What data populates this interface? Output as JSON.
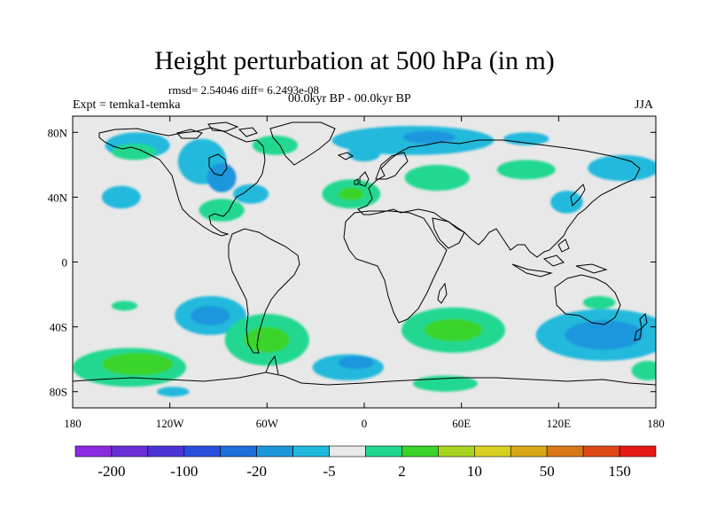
{
  "chart_data": {
    "type": "heatmap",
    "title": "Height perturbation at 500 hPa (in m)",
    "stats": "rmsd= 2.54046 diff= 6.2493e-08",
    "left_label": "Expt = temka1-temka",
    "center_label": "00.0kyr BP - 00.0kyr BP",
    "right_label": "JJA",
    "xlim": [
      -180,
      180
    ],
    "ylim": [
      -90,
      90
    ],
    "x_ticks": [
      {
        "value": -180,
        "label": "180"
      },
      {
        "value": -120,
        "label": "120W"
      },
      {
        "value": -60,
        "label": "60W"
      },
      {
        "value": 0,
        "label": "0"
      },
      {
        "value": 60,
        "label": "60E"
      },
      {
        "value": 120,
        "label": "120E"
      },
      {
        "value": 180,
        "label": "180"
      }
    ],
    "y_ticks": [
      {
        "value": 80,
        "label": "80N"
      },
      {
        "value": 40,
        "label": "40N"
      },
      {
        "value": 0,
        "label": "0"
      },
      {
        "value": -40,
        "label": "40S"
      },
      {
        "value": -80,
        "label": "80S"
      }
    ],
    "colorbar": {
      "colors": [
        "#8a2be2",
        "#6a2ed8",
        "#4b33d6",
        "#2a4fdc",
        "#1f6fdc",
        "#1f96dc",
        "#21b9dc",
        "#e8e8e8",
        "#20d890",
        "#3ad42a",
        "#a8d620",
        "#d8d020",
        "#d8a818",
        "#d87818",
        "#e04818",
        "#e81818"
      ],
      "labels": [
        {
          "index": 1,
          "text": "-200"
        },
        {
          "index": 3,
          "text": "-100"
        },
        {
          "index": 5,
          "text": "-20"
        },
        {
          "index": 7,
          "text": "-5"
        },
        {
          "index": 9,
          "text": "2"
        },
        {
          "index": 11,
          "text": "10"
        },
        {
          "index": 13,
          "text": "50"
        },
        {
          "index": 15,
          "text": "150"
        }
      ]
    },
    "background_color": "#e8e8e8",
    "anomalies": [
      {
        "lon": -140,
        "lat": 72,
        "rlon": 20,
        "rlat": 8,
        "level": "light-blue"
      },
      {
        "lon": -142,
        "lat": 68,
        "rlon": 14,
        "rlat": 5,
        "level": "green"
      },
      {
        "lon": -100,
        "lat": 62,
        "rlon": 15,
        "rlat": 14,
        "level": "light-blue"
      },
      {
        "lon": -88,
        "lat": 52,
        "rlon": 9,
        "rlat": 9,
        "level": "blue"
      },
      {
        "lon": -70,
        "lat": 42,
        "rlon": 11,
        "rlat": 6,
        "level": "light-blue"
      },
      {
        "lon": -88,
        "lat": 32,
        "rlon": 14,
        "rlat": 7,
        "level": "green"
      },
      {
        "lon": -150,
        "lat": 40,
        "rlon": 12,
        "rlat": 7,
        "level": "light-blue"
      },
      {
        "lon": -55,
        "lat": 72,
        "rlon": 14,
        "rlat": 6,
        "level": "green"
      },
      {
        "lon": -8,
        "lat": 42,
        "rlon": 18,
        "rlat": 9,
        "level": "green"
      },
      {
        "lon": -8,
        "lat": 42,
        "rlon": 8,
        "rlat": 4,
        "level": "dark-green"
      },
      {
        "lon": 45,
        "lat": 52,
        "rlon": 20,
        "rlat": 8,
        "level": "green"
      },
      {
        "lon": 30,
        "lat": 75,
        "rlon": 50,
        "rlat": 9,
        "level": "light-blue"
      },
      {
        "lon": 40,
        "lat": 77,
        "rlon": 16,
        "rlat": 4,
        "level": "blue"
      },
      {
        "lon": 0,
        "lat": 67,
        "rlon": 10,
        "rlat": 5,
        "level": "light-blue"
      },
      {
        "lon": 100,
        "lat": 57,
        "rlon": 18,
        "rlat": 6,
        "level": "green"
      },
      {
        "lon": 160,
        "lat": 58,
        "rlon": 22,
        "rlat": 8,
        "level": "light-blue"
      },
      {
        "lon": 125,
        "lat": 37,
        "rlon": 10,
        "rlat": 7,
        "level": "light-blue"
      },
      {
        "lon": 100,
        "lat": 76,
        "rlon": 14,
        "rlat": 4,
        "level": "light-blue"
      },
      {
        "lon": -145,
        "lat": -65,
        "rlon": 35,
        "rlat": 12,
        "level": "green"
      },
      {
        "lon": -140,
        "lat": -63,
        "rlon": 22,
        "rlat": 7,
        "level": "dark-green"
      },
      {
        "lon": -148,
        "lat": -27,
        "rlon": 8,
        "rlat": 3,
        "level": "green"
      },
      {
        "lon": -95,
        "lat": -33,
        "rlon": 22,
        "rlat": 12,
        "level": "light-blue"
      },
      {
        "lon": -95,
        "lat": -33,
        "rlon": 12,
        "rlat": 6,
        "level": "blue"
      },
      {
        "lon": -118,
        "lat": -80,
        "rlon": 10,
        "rlat": 3,
        "level": "light-blue"
      },
      {
        "lon": -60,
        "lat": -48,
        "rlon": 26,
        "rlat": 16,
        "level": "green"
      },
      {
        "lon": -60,
        "lat": -48,
        "rlon": 14,
        "rlat": 8,
        "level": "dark-green"
      },
      {
        "lon": -10,
        "lat": -65,
        "rlon": 22,
        "rlat": 8,
        "level": "light-blue"
      },
      {
        "lon": -5,
        "lat": -62,
        "rlon": 11,
        "rlat": 4,
        "level": "blue"
      },
      {
        "lon": 55,
        "lat": -42,
        "rlon": 32,
        "rlat": 14,
        "level": "green"
      },
      {
        "lon": 55,
        "lat": -42,
        "rlon": 18,
        "rlat": 7,
        "level": "dark-green"
      },
      {
        "lon": 50,
        "lat": -75,
        "rlon": 20,
        "rlat": 5,
        "level": "green"
      },
      {
        "lon": 148,
        "lat": -45,
        "rlon": 42,
        "rlat": 16,
        "level": "light-blue"
      },
      {
        "lon": 148,
        "lat": -45,
        "rlon": 24,
        "rlat": 9,
        "level": "blue"
      },
      {
        "lon": 145,
        "lat": -25,
        "rlon": 10,
        "rlat": 4,
        "level": "green"
      },
      {
        "lon": 175,
        "lat": -67,
        "rlon": 10,
        "rlat": 6,
        "level": "green"
      }
    ],
    "anomaly_colors": {
      "light-blue": "#21b9dc",
      "blue": "#1f96dc",
      "green": "#20d890",
      "dark-green": "#3ad42a"
    }
  }
}
